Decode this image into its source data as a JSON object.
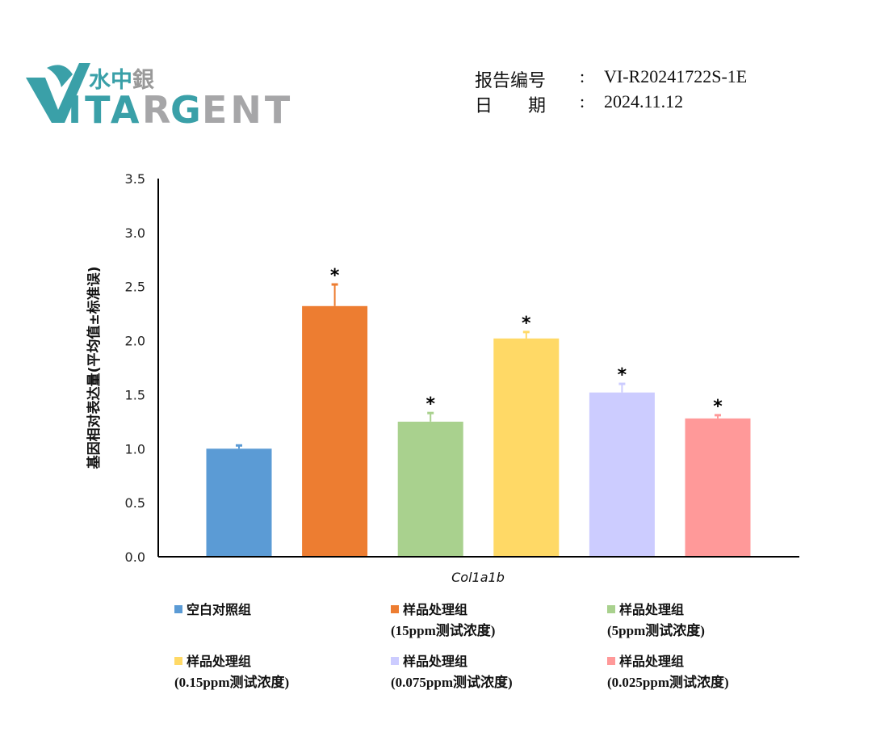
{
  "logo": {
    "cn": "水中銀",
    "en": "VITARGENT"
  },
  "report": {
    "number_label": "报告编号",
    "number_sep": ":",
    "number_value": "VI-R20241722S-1E",
    "date_label": "日　　期",
    "date_sep": ":",
    "date_value": "2024.11.12"
  },
  "chart_data": {
    "type": "bar",
    "title": "",
    "xlabel": "Col1a1b",
    "ylabel": "基因相对表达量(平均值±标准误)",
    "ylim": [
      0,
      3.5
    ],
    "yticks": [
      "0.0",
      "0.5",
      "1.0",
      "1.5",
      "2.0",
      "2.5",
      "3.0",
      "3.5"
    ],
    "grid": false,
    "legend_position": "bottom",
    "series": [
      {
        "name": "空白对照组",
        "sub": "",
        "value": 1.0,
        "error": 0.03,
        "significant": false,
        "color": "#5B9BD5"
      },
      {
        "name": "样品处理组",
        "sub": "(15ppm测试浓度)",
        "value": 2.32,
        "error": 0.2,
        "significant": true,
        "color": "#ED7D31"
      },
      {
        "name": "样品处理组",
        "sub": "(5ppm测试浓度)",
        "value": 1.25,
        "error": 0.08,
        "significant": true,
        "color": "#A9D18E"
      },
      {
        "name": "样品处理组",
        "sub": "(0.15ppm测试浓度)",
        "value": 2.02,
        "error": 0.06,
        "significant": true,
        "color": "#FFD966"
      },
      {
        "name": "样品处理组",
        "sub": "(0.075ppm测试浓度)",
        "value": 1.52,
        "error": 0.08,
        "significant": true,
        "color": "#CCCCFF"
      },
      {
        "name": "样品处理组",
        "sub": "(0.025ppm测试浓度)",
        "value": 1.28,
        "error": 0.03,
        "significant": true,
        "color": "#FF9999"
      }
    ],
    "significance_mark": "*"
  }
}
